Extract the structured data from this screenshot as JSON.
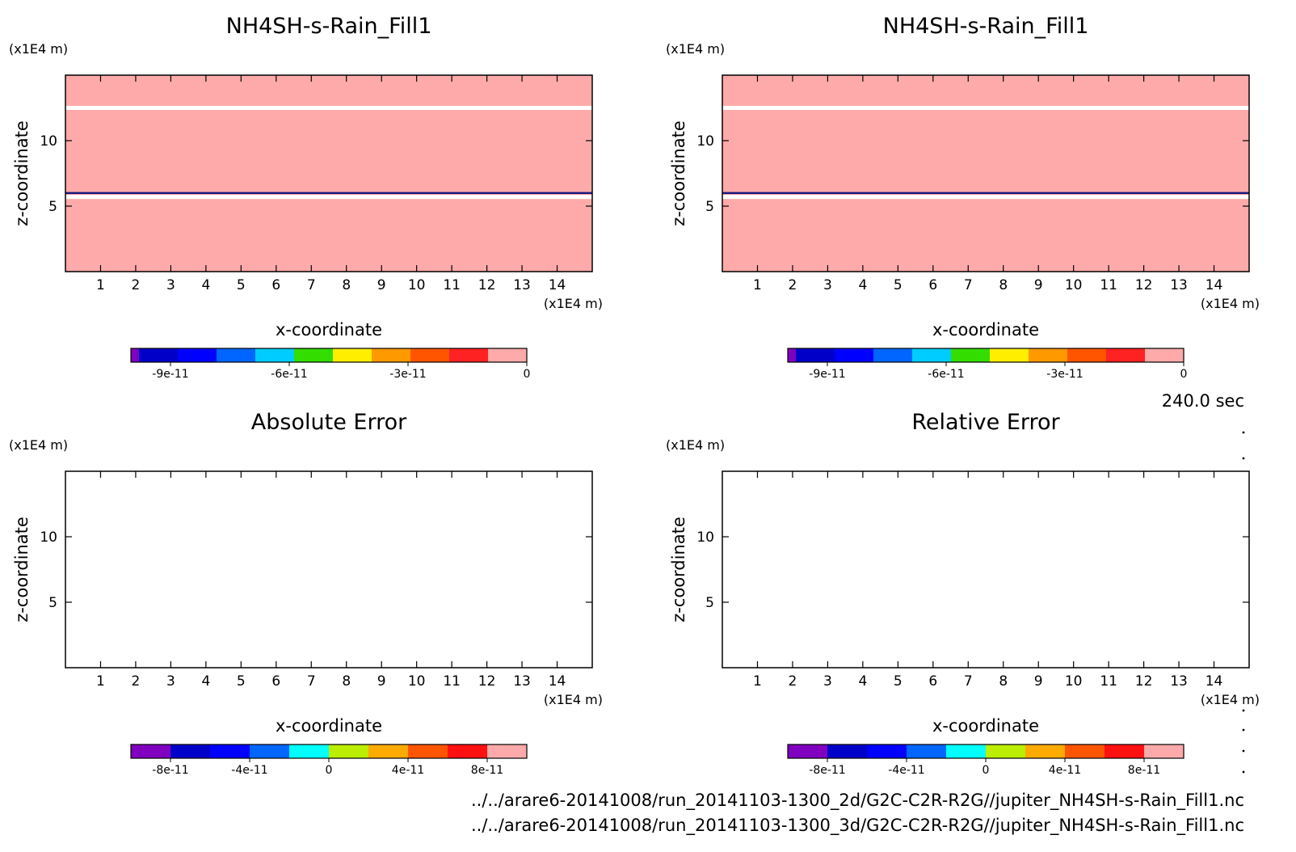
{
  "figure": {
    "time_label": "240.0 sec",
    "footer_lines": [
      "../../arare6-20141008/run_20141103-1300_2d/G2C-C2R-R2G//jupiter_NH4SH-s-Rain_Fill1.nc",
      "../../arare6-20141008/run_20141103-1300_3d/G2C-C2R-R2G//jupiter_NH4SH-s-Rain_Fill1.nc"
    ]
  },
  "chart_data": [
    {
      "type": "heatmap",
      "title": "NH4SH-s-Rain_Fill1",
      "xlabel": "x-coordinate",
      "ylabel": "z-coordinate",
      "x_unit": "(x1E4 m)",
      "z_unit": "(x1E4 m)",
      "xlim": [
        0,
        15
      ],
      "ylim": [
        0,
        15
      ],
      "x_ticks": [
        1,
        2,
        3,
        4,
        5,
        6,
        7,
        8,
        9,
        10,
        11,
        12,
        13,
        14
      ],
      "x_tick_labels": [
        "1",
        "2",
        "3",
        "4",
        "5",
        "6",
        "7",
        "8",
        "9",
        "10",
        "11",
        "12",
        "13",
        "14"
      ],
      "y_ticks": [
        5,
        10
      ],
      "y_tick_labels": [
        "5",
        "10"
      ],
      "background_color": "#ffaaaa",
      "bands": [
        {
          "z": 12.5,
          "color": "#ffffff"
        },
        {
          "z": 6.0,
          "color": "#1a1a80"
        },
        {
          "z": 5.7,
          "color": "#ffffff"
        }
      ],
      "colorbar": {
        "colors": [
          "#7f00bf",
          "#0000c8",
          "#0000ff",
          "#0066ff",
          "#00ccff",
          "#33dd00",
          "#ffee00",
          "#ff9900",
          "#ff5500",
          "#ff2222",
          "#ffaaaa"
        ],
        "tick_labels": [
          "-9e-11",
          "-6e-11",
          "-3e-11",
          "0"
        ],
        "tick_values": [
          -9e-11,
          -6e-11,
          -3e-11,
          0
        ],
        "range": [
          -1e-10,
          0
        ]
      }
    },
    {
      "type": "heatmap",
      "title": "NH4SH-s-Rain_Fill1",
      "xlabel": "x-coordinate",
      "ylabel": "z-coordinate",
      "x_unit": "(x1E4 m)",
      "z_unit": "(x1E4 m)",
      "xlim": [
        0,
        15
      ],
      "ylim": [
        0,
        15
      ],
      "x_ticks": [
        1,
        2,
        3,
        4,
        5,
        6,
        7,
        8,
        9,
        10,
        11,
        12,
        13,
        14
      ],
      "x_tick_labels": [
        "1",
        "2",
        "3",
        "4",
        "5",
        "6",
        "7",
        "8",
        "9",
        "10",
        "11",
        "12",
        "13",
        "14"
      ],
      "y_ticks": [
        5,
        10
      ],
      "y_tick_labels": [
        "5",
        "10"
      ],
      "background_color": "#ffaaaa",
      "bands": [
        {
          "z": 12.5,
          "color": "#ffffff"
        },
        {
          "z": 6.0,
          "color": "#1a1a80"
        },
        {
          "z": 5.7,
          "color": "#ffffff"
        }
      ],
      "colorbar": {
        "colors": [
          "#7f00bf",
          "#0000c8",
          "#0000ff",
          "#0066ff",
          "#00ccff",
          "#33dd00",
          "#ffee00",
          "#ff9900",
          "#ff5500",
          "#ff2222",
          "#ffaaaa"
        ],
        "tick_labels": [
          "-9e-11",
          "-6e-11",
          "-3e-11",
          "0"
        ],
        "tick_values": [
          -9e-11,
          -6e-11,
          -3e-11,
          0
        ],
        "range": [
          -1e-10,
          0
        ]
      }
    },
    {
      "type": "heatmap",
      "title": "Absolute Error",
      "xlabel": "x-coordinate",
      "ylabel": "z-coordinate",
      "x_unit": "(x1E4 m)",
      "z_unit": "(x1E4 m)",
      "xlim": [
        0,
        15
      ],
      "ylim": [
        0,
        15
      ],
      "x_ticks": [
        1,
        2,
        3,
        4,
        5,
        6,
        7,
        8,
        9,
        10,
        11,
        12,
        13,
        14
      ],
      "x_tick_labels": [
        "1",
        "2",
        "3",
        "4",
        "5",
        "6",
        "7",
        "8",
        "9",
        "10",
        "11",
        "12",
        "13",
        "14"
      ],
      "y_ticks": [
        5,
        10
      ],
      "y_tick_labels": [
        "5",
        "10"
      ],
      "background_color": "#ffffff",
      "bands": [],
      "colorbar": {
        "colors": [
          "#7f00bf",
          "#0000c8",
          "#0000ff",
          "#0066ff",
          "#00ffff",
          "#bbee00",
          "#ffaa00",
          "#ff5500",
          "#ff1111",
          "#ffaaaa"
        ],
        "tick_labels": [
          "-8e-11",
          "-4e-11",
          "0",
          "4e-11",
          "8e-11"
        ],
        "tick_values": [
          -8e-11,
          -4e-11,
          0,
          4e-11,
          8e-11
        ],
        "range": [
          -1e-10,
          1e-10
        ]
      }
    },
    {
      "type": "heatmap",
      "title": "Relative Error",
      "xlabel": "x-coordinate",
      "ylabel": "z-coordinate",
      "x_unit": "(x1E4 m)",
      "z_unit": "(x1E4 m)",
      "xlim": [
        0,
        15
      ],
      "ylim": [
        0,
        15
      ],
      "x_ticks": [
        1,
        2,
        3,
        4,
        5,
        6,
        7,
        8,
        9,
        10,
        11,
        12,
        13,
        14
      ],
      "x_tick_labels": [
        "1",
        "2",
        "3",
        "4",
        "5",
        "6",
        "7",
        "8",
        "9",
        "10",
        "11",
        "12",
        "13",
        "14"
      ],
      "y_ticks": [
        5,
        10
      ],
      "y_tick_labels": [
        "5",
        "10"
      ],
      "background_color": "#ffffff",
      "bands": [],
      "colorbar": {
        "colors": [
          "#7f00bf",
          "#0000c8",
          "#0000ff",
          "#0066ff",
          "#00ffff",
          "#bbee00",
          "#ffaa00",
          "#ff5500",
          "#ff1111",
          "#ffaaaa"
        ],
        "tick_labels": [
          "-8e-11",
          "-4e-11",
          "0",
          "4e-11",
          "8e-11"
        ],
        "tick_values": [
          -8e-11,
          -4e-11,
          0,
          4e-11,
          8e-11
        ],
        "range": [
          -1e-10,
          1e-10
        ]
      }
    }
  ]
}
